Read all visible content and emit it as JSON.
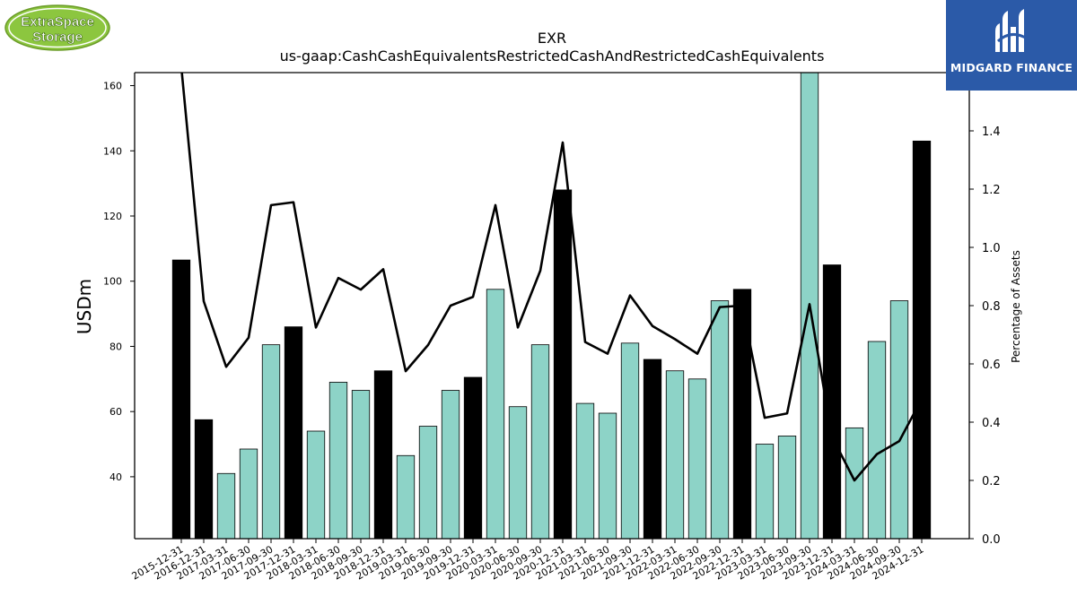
{
  "logos": {
    "left_line1": "ExtraSpace",
    "left_line2": "Storage",
    "right_text": "MIDGARD FINANCE"
  },
  "colors": {
    "bar_highlight": "#000000",
    "bar_normal": "#8dd3c7",
    "line": "#000000",
    "logo_left_green": "#8cc63f",
    "logo_right_blue": "#2b5aa8"
  },
  "chart_data": {
    "type": "bar",
    "title": "EXR",
    "subtitle": "us-gaap:CashCashEquivalentsRestrictedCashAndRestrictedCashEquivalents",
    "ylabel": "USDm",
    "ylabel_right": "Percentage of Assets",
    "ylim": [
      21,
      164
    ],
    "ylim_right": [
      0.0,
      1.6
    ],
    "yticks": [
      40,
      60,
      80,
      100,
      120,
      140,
      160
    ],
    "yticks_right": [
      "0.0",
      "0.2",
      "0.4",
      "0.6",
      "0.8",
      "1.0",
      "1.2",
      "1.4"
    ],
    "categories": [
      "2015-12-31",
      "2016-12-31",
      "2017-03-31",
      "2017-06-30",
      "2017-09-30",
      "2017-12-31",
      "2018-03-31",
      "2018-06-30",
      "2018-09-30",
      "2018-12-31",
      "2019-03-31",
      "2019-06-30",
      "2019-09-30",
      "2019-12-31",
      "2020-03-31",
      "2020-06-30",
      "2020-09-30",
      "2020-12-31",
      "2021-03-31",
      "2021-06-30",
      "2021-09-30",
      "2021-12-31",
      "2022-03-31",
      "2022-06-30",
      "2022-09-30",
      "2022-12-31",
      "2023-03-31",
      "2023-06-30",
      "2023-09-30",
      "2023-12-31",
      "2024-03-31",
      "2024-06-30",
      "2024-09-30",
      "2024-12-31"
    ],
    "series": [
      {
        "values": [
          106.5,
          57.5,
          41,
          48.5,
          80.5,
          86,
          54,
          69,
          66.5,
          72.5,
          46.5,
          55.5,
          66.5,
          70.5,
          97.5,
          61.5,
          80.5,
          128,
          62.5,
          59.5,
          81,
          76,
          72.5,
          70,
          94,
          97.5,
          50,
          52.5,
          164,
          105,
          55,
          81.5,
          94,
          143
        ],
        "highlight": [
          true,
          true,
          false,
          false,
          false,
          true,
          false,
          false,
          false,
          true,
          false,
          false,
          false,
          true,
          false,
          false,
          false,
          true,
          false,
          false,
          false,
          true,
          false,
          false,
          false,
          true,
          false,
          false,
          false,
          true,
          false,
          false,
          false,
          true
        ]
      },
      {
        "axis": "right",
        "type": "line",
        "values": [
          1.62,
          0.815,
          0.59,
          0.69,
          1.145,
          1.155,
          0.725,
          0.895,
          0.855,
          0.925,
          0.575,
          0.665,
          0.8,
          0.83,
          1.145,
          0.725,
          0.92,
          1.36,
          0.675,
          0.635,
          0.835,
          0.73,
          0.685,
          0.635,
          0.795,
          0.8,
          0.415,
          0.43,
          0.805,
          0.35,
          0.2,
          0.29,
          0.335,
          0.48
        ]
      }
    ]
  }
}
